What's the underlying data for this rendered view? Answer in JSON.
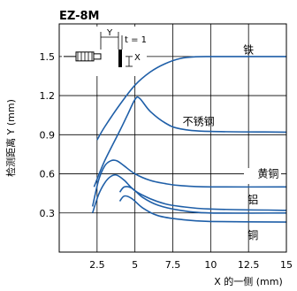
{
  "chart_data": {
    "type": "line",
    "title": "EZ-8M",
    "xlabel": "X 的一侧 (mm)",
    "ylabel": "检测距离 Y (mm)",
    "xlim": [
      0,
      15
    ],
    "ylim": [
      0,
      1.75
    ],
    "xticks": [
      2.5,
      5,
      7.5,
      10,
      12.5,
      15
    ],
    "xtick_labels": [
      "2.5",
      "5",
      "7.5",
      "10",
      "12.5",
      "15"
    ],
    "yticks": [
      0.3,
      0.6,
      0.9,
      1.2,
      1.5
    ],
    "ytick_labels": [
      "0.3",
      "0.6",
      "0.9",
      "1.2",
      "1.5"
    ],
    "grid": true,
    "line_color": "#1f5fa8",
    "inset": {
      "y_label": "Y",
      "x_label": "X",
      "t_label": "t = 1"
    },
    "series": [
      {
        "name": "铁",
        "points": [
          [
            2.5,
            0.86
          ],
          [
            3,
            0.96
          ],
          [
            4,
            1.13
          ],
          [
            5,
            1.28
          ],
          [
            6,
            1.38
          ],
          [
            7,
            1.445
          ],
          [
            8,
            1.485
          ],
          [
            9,
            1.498
          ],
          [
            10,
            1.5
          ],
          [
            12,
            1.5
          ],
          [
            15,
            1.5
          ]
        ]
      },
      {
        "name": "不锈钢",
        "points": [
          [
            2.3,
            0.5
          ],
          [
            3,
            0.7
          ],
          [
            4,
            0.93
          ],
          [
            4.5,
            1.05
          ],
          [
            5,
            1.17
          ],
          [
            5.3,
            1.18
          ],
          [
            6,
            1.08
          ],
          [
            7,
            0.99
          ],
          [
            8,
            0.945
          ],
          [
            10,
            0.925
          ],
          [
            15,
            0.92
          ]
        ]
      },
      {
        "name": "黄铜",
        "points": [
          [
            2.2,
            0.35
          ],
          [
            2.6,
            0.55
          ],
          [
            3,
            0.66
          ],
          [
            3.4,
            0.7
          ],
          [
            3.8,
            0.7
          ],
          [
            4.3,
            0.66
          ],
          [
            5,
            0.6
          ],
          [
            6,
            0.55
          ],
          [
            7,
            0.525
          ],
          [
            8,
            0.51
          ],
          [
            10,
            0.5
          ],
          [
            15,
            0.5
          ]
        ]
      },
      {
        "name": "铝",
        "points": [
          [
            2.2,
            0.3
          ],
          [
            2.6,
            0.44
          ],
          [
            3,
            0.53
          ],
          [
            3.4,
            0.58
          ],
          [
            3.8,
            0.59
          ],
          [
            4.3,
            0.55
          ],
          [
            5,
            0.47
          ],
          [
            6,
            0.41
          ],
          [
            7,
            0.37
          ],
          [
            8,
            0.35
          ],
          [
            10,
            0.33
          ],
          [
            15,
            0.32
          ]
        ]
      },
      {
        "name": "",
        "points": [
          [
            4,
            0.46
          ],
          [
            4.3,
            0.5
          ],
          [
            4.8,
            0.49
          ],
          [
            5.5,
            0.42
          ],
          [
            6.5,
            0.36
          ],
          [
            8,
            0.32
          ],
          [
            10,
            0.3
          ],
          [
            15,
            0.3
          ]
        ]
      },
      {
        "name": "铜",
        "points": [
          [
            4,
            0.39
          ],
          [
            4.3,
            0.43
          ],
          [
            4.8,
            0.41
          ],
          [
            5.5,
            0.34
          ],
          [
            6.5,
            0.28
          ],
          [
            8,
            0.25
          ],
          [
            10,
            0.235
          ],
          [
            15,
            0.23
          ]
        ]
      }
    ],
    "labels": [
      {
        "text": "铁",
        "x": 12.5,
        "y": 1.55
      },
      {
        "text": "不锈钢",
        "x": 9.2,
        "y": 1.0
      },
      {
        "text": "黄铜",
        "x": 13.8,
        "y": 0.6
      },
      {
        "text": "铝",
        "x": 12.8,
        "y": 0.4
      },
      {
        "text": "铜",
        "x": 12.8,
        "y": 0.13
      }
    ]
  }
}
